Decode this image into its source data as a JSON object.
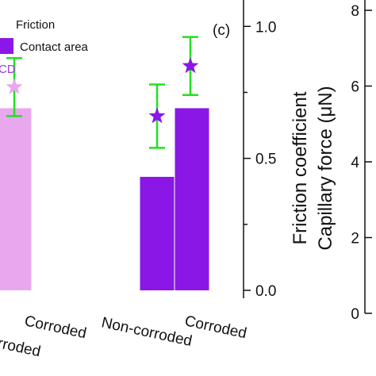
{
  "chart_data": {
    "type": "bar",
    "panel_label": "(c)",
    "categories": [
      {
        "label": "Corroded",
        "extra": "rroded"
      },
      {
        "label": "Non-corroded"
      },
      {
        "label": "Corroded"
      }
    ],
    "series": [
      {
        "name": "Contact area",
        "values": [
          0.69,
          0.43,
          0.69
        ],
        "colors": [
          "#e9a8ee",
          "#8a17e6",
          "#8a17e6"
        ]
      },
      {
        "name": "Friction",
        "values": [
          0.77,
          0.66,
          0.85
        ],
        "errors": [
          0.11,
          0.12,
          0.11
        ],
        "marker": "star",
        "colors": [
          "#e9a8ee",
          "#8a17e6",
          "#8a17e6"
        ]
      }
    ],
    "legend": {
      "position": "top-left",
      "extra_text": "CD",
      "extra_color": "#9d3de0"
    },
    "right_axis": {
      "label_line1": "Friction coefficient",
      "label_line2": "Capillary force (μN)",
      "ylim": [
        -0.03,
        1.1
      ],
      "ticks": [
        "0.0",
        "0.5",
        "1.0"
      ]
    },
    "next_panel_axis": {
      "ylim": [
        0,
        8
      ],
      "ticks": [
        "0",
        "2",
        "4",
        "6",
        "8"
      ]
    },
    "colors": {
      "error_bar": "#22e022",
      "light": "#e9a8ee",
      "dark": "#8a17e6"
    }
  }
}
